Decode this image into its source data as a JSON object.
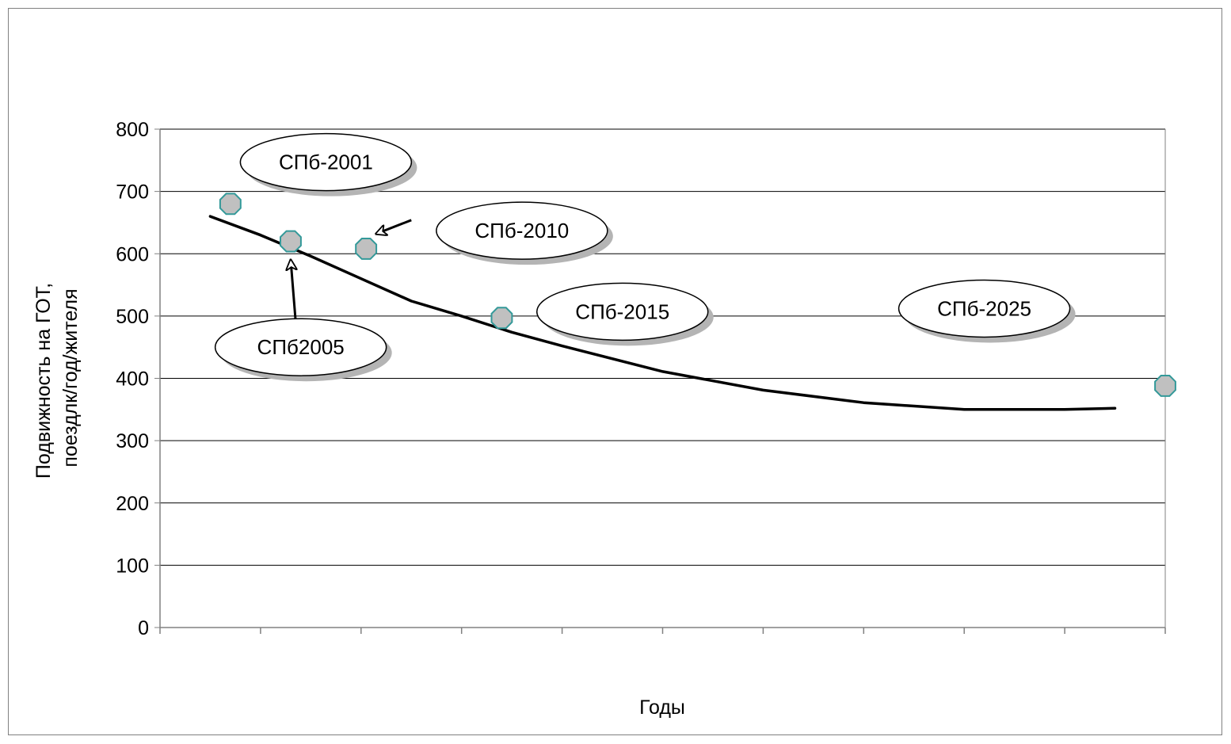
{
  "chart_data": {
    "type": "scatter",
    "title": "",
    "xlabel": "Годы",
    "ylabel_line1": "Подвижность на ГОТ,",
    "ylabel_line2": "поездлк/год/жителя",
    "ylim": [
      0,
      800
    ],
    "y_ticks": [
      "0",
      "100",
      "200",
      "300",
      "400",
      "500",
      "600",
      "700",
      "800"
    ],
    "x_tick_count": 10,
    "x_tick_labels": [],
    "grid": true,
    "legend": "none",
    "points": [
      {
        "x": 0.7,
        "y": 680
      },
      {
        "x": 1.3,
        "y": 620
      },
      {
        "x": 2.05,
        "y": 608
      },
      {
        "x": 3.4,
        "y": 497
      },
      {
        "x": 10.0,
        "y": 388
      }
    ],
    "trend_line": [
      {
        "x": 0.5,
        "y": 660
      },
      {
        "x": 1.0,
        "y": 630
      },
      {
        "x": 1.5,
        "y": 596
      },
      {
        "x": 2.0,
        "y": 560
      },
      {
        "x": 2.5,
        "y": 524
      },
      {
        "x": 3.0,
        "y": 500
      },
      {
        "x": 3.5,
        "y": 474
      },
      {
        "x": 4.0,
        "y": 452
      },
      {
        "x": 5.0,
        "y": 411
      },
      {
        "x": 6.0,
        "y": 381
      },
      {
        "x": 7.0,
        "y": 361
      },
      {
        "x": 8.0,
        "y": 350
      },
      {
        "x": 9.0,
        "y": 350
      },
      {
        "x": 9.5,
        "y": 352
      }
    ],
    "callouts": [
      {
        "label": "СПб-2001",
        "x": 1.65,
        "y": 747
      },
      {
        "label": "СПб2005",
        "x": 1.4,
        "y": 450
      },
      {
        "label": "СПб-2010",
        "x": 3.6,
        "y": 637
      },
      {
        "label": "СПб-2015",
        "x": 4.6,
        "y": 507
      },
      {
        "label": "СПб-2025",
        "x": 8.2,
        "y": 512
      }
    ],
    "arrows": [
      {
        "from": {
          "x": 1.35,
          "y": 490
        },
        "to": {
          "x": 1.3,
          "y": 590
        }
      },
      {
        "from": {
          "x": 2.5,
          "y": 654
        },
        "to": {
          "x": 2.15,
          "y": 632
        }
      }
    ],
    "colors": {
      "point_fill": "#c0c0c0",
      "point_stroke": "#339999",
      "line": "#000000",
      "grid": "#000000",
      "axis": "#808080",
      "bubble_fill": "#ffffff",
      "bubble_shadow": "#b4b4b4"
    }
  }
}
